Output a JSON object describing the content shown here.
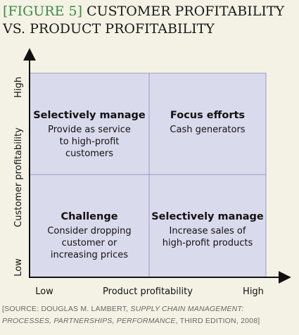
{
  "header": {
    "tag": "[FIGURE 5]",
    "title_line1": "CUSTOMER PROFITABILITY",
    "title_line2": "VS. PRODUCT PROFITABILITY"
  },
  "y_axis": {
    "label": "Customer profitability",
    "high": "High",
    "low": "Low"
  },
  "x_axis": {
    "label": "Product profitability",
    "low": "Low",
    "high": "High"
  },
  "quadrants": [
    {
      "title": "Selectively manage",
      "lines": [
        "Provide as service",
        "to high-profit",
        "customers"
      ]
    },
    {
      "title": "Focus efforts",
      "lines": [
        "Cash generators"
      ]
    },
    {
      "title": "Challenge",
      "lines": [
        "Consider dropping",
        "customer or",
        "increasing prices"
      ]
    },
    {
      "title": "Selectively manage",
      "lines": [
        "Increase sales of",
        "high-profit products"
      ]
    }
  ],
  "source": {
    "line1_plain": "[SOURCE: DOUGLAS M. LAMBERT, ",
    "line1_italic": "SUPPLY CHAIN MANAGEMENT:",
    "line2_italic": "PROCESSES, PARTNERSHIPS, PERFORMANCE",
    "line2_plain": ", THIRD EDITION, 2008]"
  }
}
